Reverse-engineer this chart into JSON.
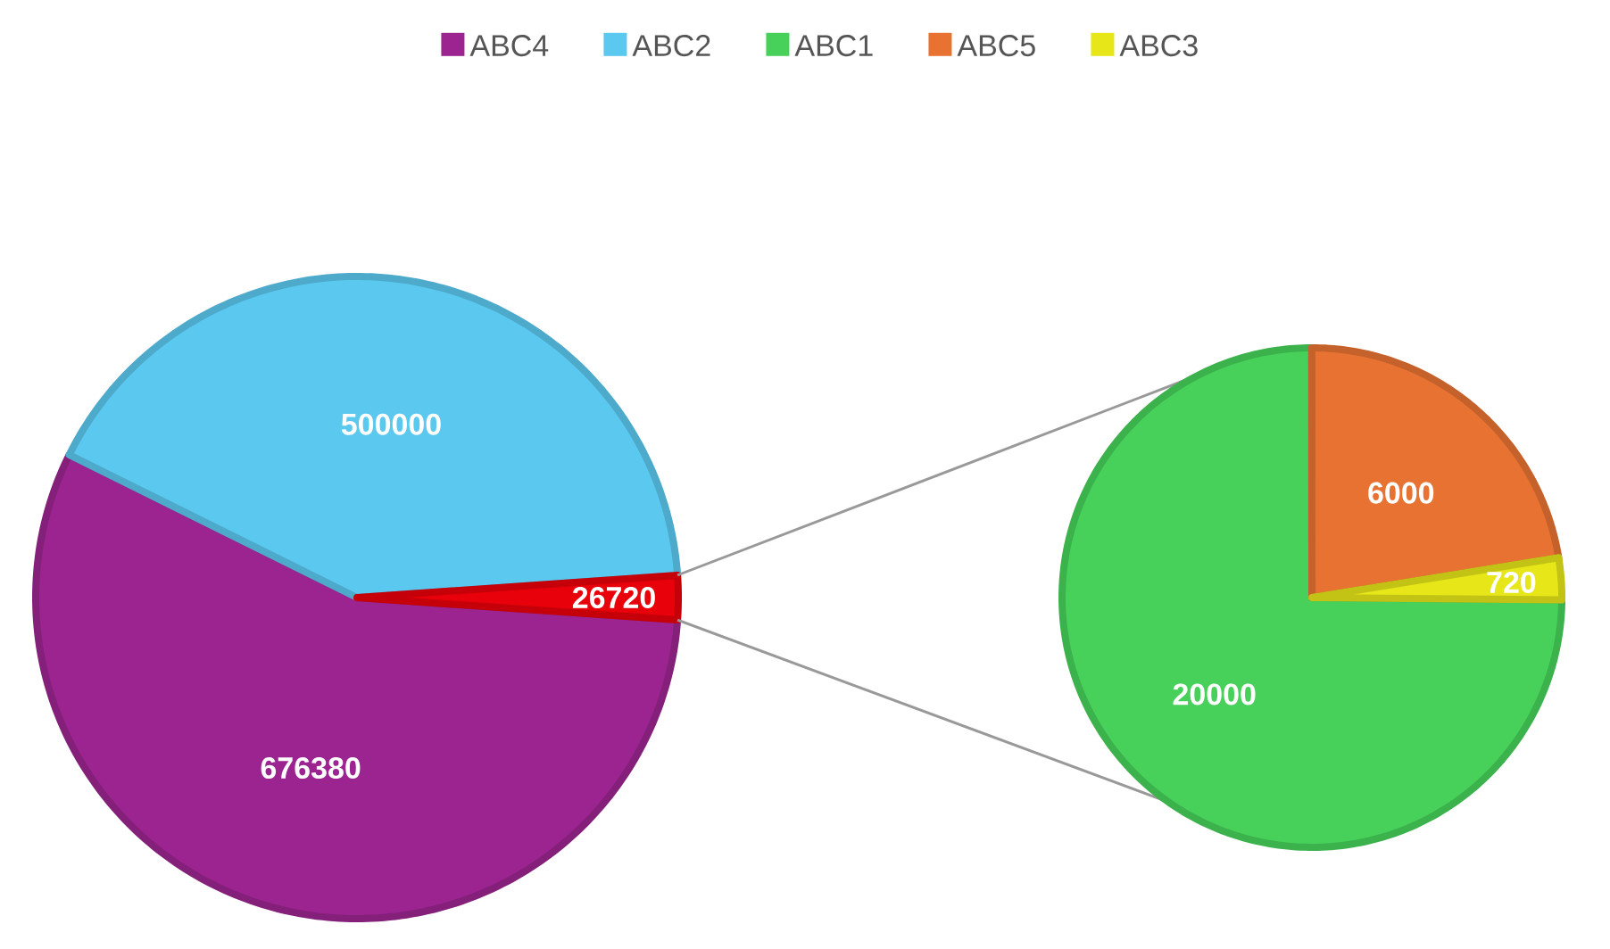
{
  "chart_data": [
    {
      "type": "pie",
      "categories": [
        "ABC4",
        "ABC2",
        null
      ],
      "values": [
        676380,
        500000,
        26720
      ],
      "colors": [
        "#9b2490",
        "#5bc8ef",
        "#e8000b"
      ],
      "data_labels": true,
      "legend": "top"
    },
    {
      "type": "pie",
      "categories": [
        "ABC1",
        "ABC5",
        "ABC3"
      ],
      "values": [
        20000,
        6000,
        720
      ],
      "colors": [
        "#47d15a",
        "#e87232",
        "#e6e619"
      ],
      "data_labels": true,
      "legend": "top"
    }
  ]
}
